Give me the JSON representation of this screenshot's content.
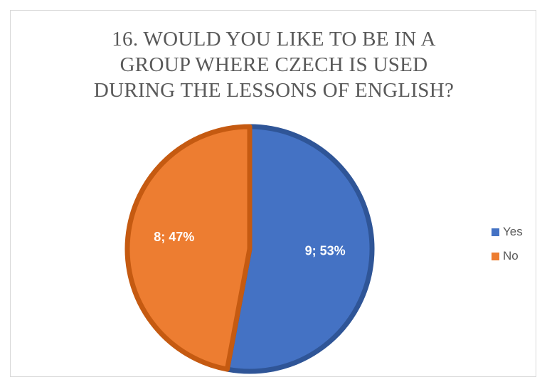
{
  "chart_data": {
    "type": "pie",
    "title": "16. WOULD YOU LIKE TO BE IN A GROUP WHERE CZECH IS USED DURING THE LESSONS OF ENGLISH?",
    "title_lines": [
      "16. WOULD YOU LIKE TO BE IN A",
      "GROUP WHERE CZECH IS USED",
      "DURING THE LESSONS OF ENGLISH?"
    ],
    "categories": [
      "Yes",
      "No"
    ],
    "values": [
      9,
      8
    ],
    "percentages": [
      53,
      47
    ],
    "data_labels": [
      "9; 53%",
      "8; 47%"
    ],
    "colors": [
      "#4472c4",
      "#ed7d31"
    ],
    "border_colors": [
      "#2f5597",
      "#c55a11"
    ],
    "legend_position": "right"
  }
}
